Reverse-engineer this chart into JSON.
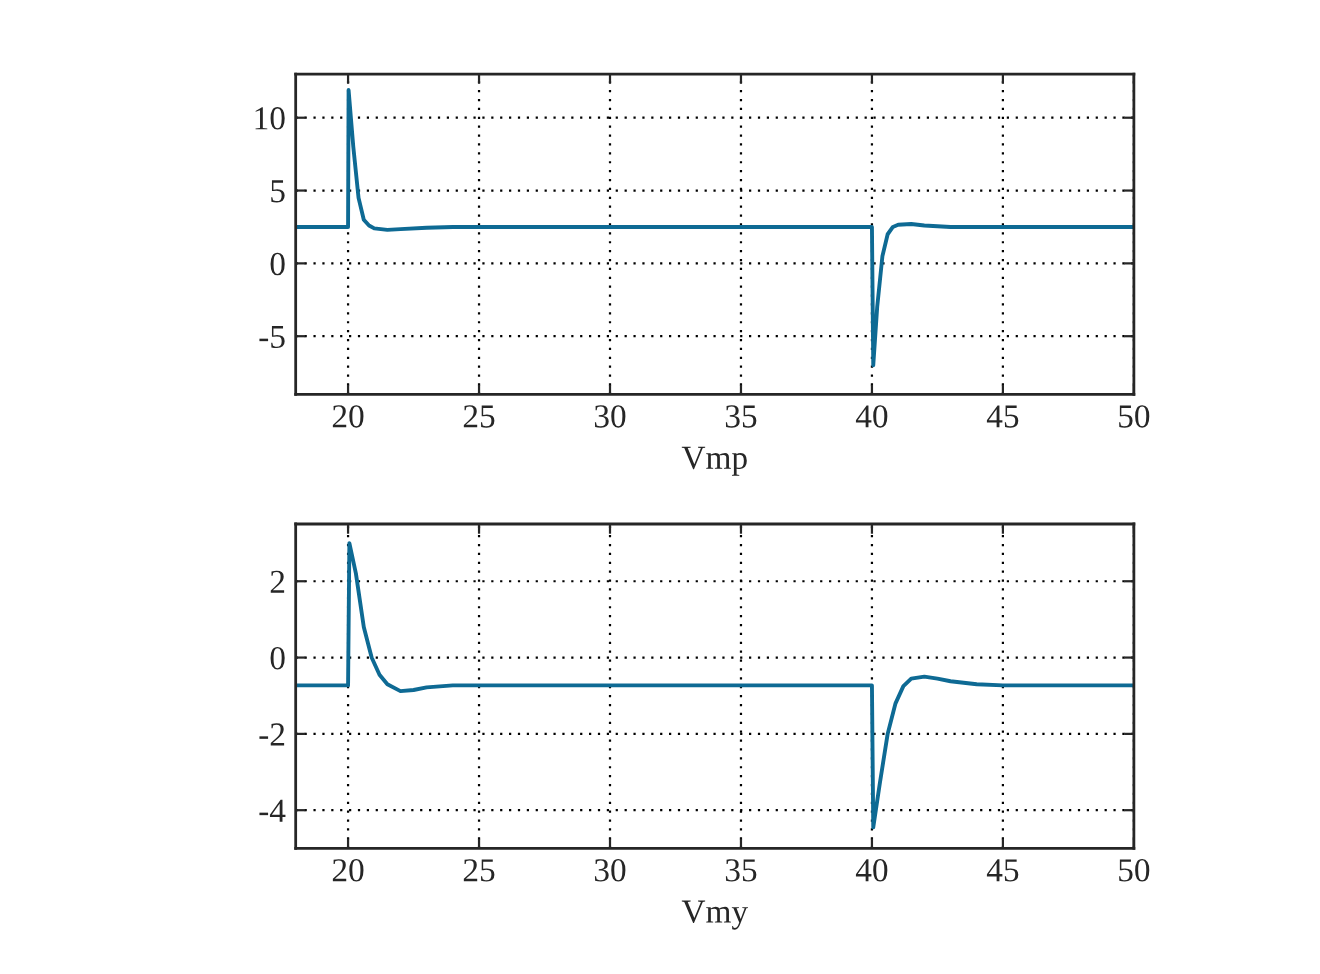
{
  "chart_data": [
    {
      "type": "line",
      "xlabel": "Vmp",
      "xlim": [
        18,
        50
      ],
      "xticks": [
        20,
        25,
        30,
        35,
        40,
        45,
        50
      ],
      "ylim": [
        -9,
        13
      ],
      "yticks": [
        -5,
        0,
        5,
        10
      ],
      "grid": true,
      "line_style": "solid",
      "series": [
        {
          "color": "#0e6a94",
          "x": [
            18,
            19.95,
            20,
            20.02,
            20.2,
            20.4,
            20.6,
            20.8,
            21,
            21.5,
            22,
            23,
            24,
            25,
            39.95,
            40,
            40.05,
            40.2,
            40.4,
            40.6,
            40.8,
            41,
            41.5,
            42,
            43,
            50
          ],
          "values": [
            2.5,
            2.5,
            2.5,
            11.9,
            8,
            4.5,
            3.0,
            2.6,
            2.4,
            2.3,
            2.35,
            2.45,
            2.5,
            2.5,
            2.5,
            2.5,
            -7.0,
            -3,
            0.5,
            2.0,
            2.5,
            2.65,
            2.7,
            2.6,
            2.5,
            2.5
          ]
        }
      ]
    },
    {
      "type": "line",
      "xlabel": "Vmy",
      "xlim": [
        18,
        50
      ],
      "xticks": [
        20,
        25,
        30,
        35,
        40,
        45,
        50
      ],
      "ylim": [
        -5,
        3.5
      ],
      "yticks": [
        -4,
        -2,
        0,
        2
      ],
      "grid": true,
      "line_style": "solid",
      "series": [
        {
          "color": "#0e6a94",
          "x": [
            18,
            19.97,
            20,
            20.05,
            20.3,
            20.6,
            20.9,
            21.2,
            21.5,
            22,
            22.5,
            23,
            24,
            25,
            39.97,
            40,
            40.05,
            40.3,
            40.6,
            40.9,
            41.2,
            41.5,
            42,
            42.5,
            43,
            44,
            45,
            50
          ],
          "values": [
            -0.73,
            -0.73,
            -0.73,
            3.0,
            2.2,
            0.8,
            0,
            -0.45,
            -0.7,
            -0.88,
            -0.85,
            -0.78,
            -0.73,
            -0.73,
            -0.73,
            -0.73,
            -4.45,
            -3.3,
            -2.0,
            -1.2,
            -0.75,
            -0.55,
            -0.5,
            -0.55,
            -0.62,
            -0.7,
            -0.73,
            -0.73
          ]
        }
      ]
    }
  ]
}
